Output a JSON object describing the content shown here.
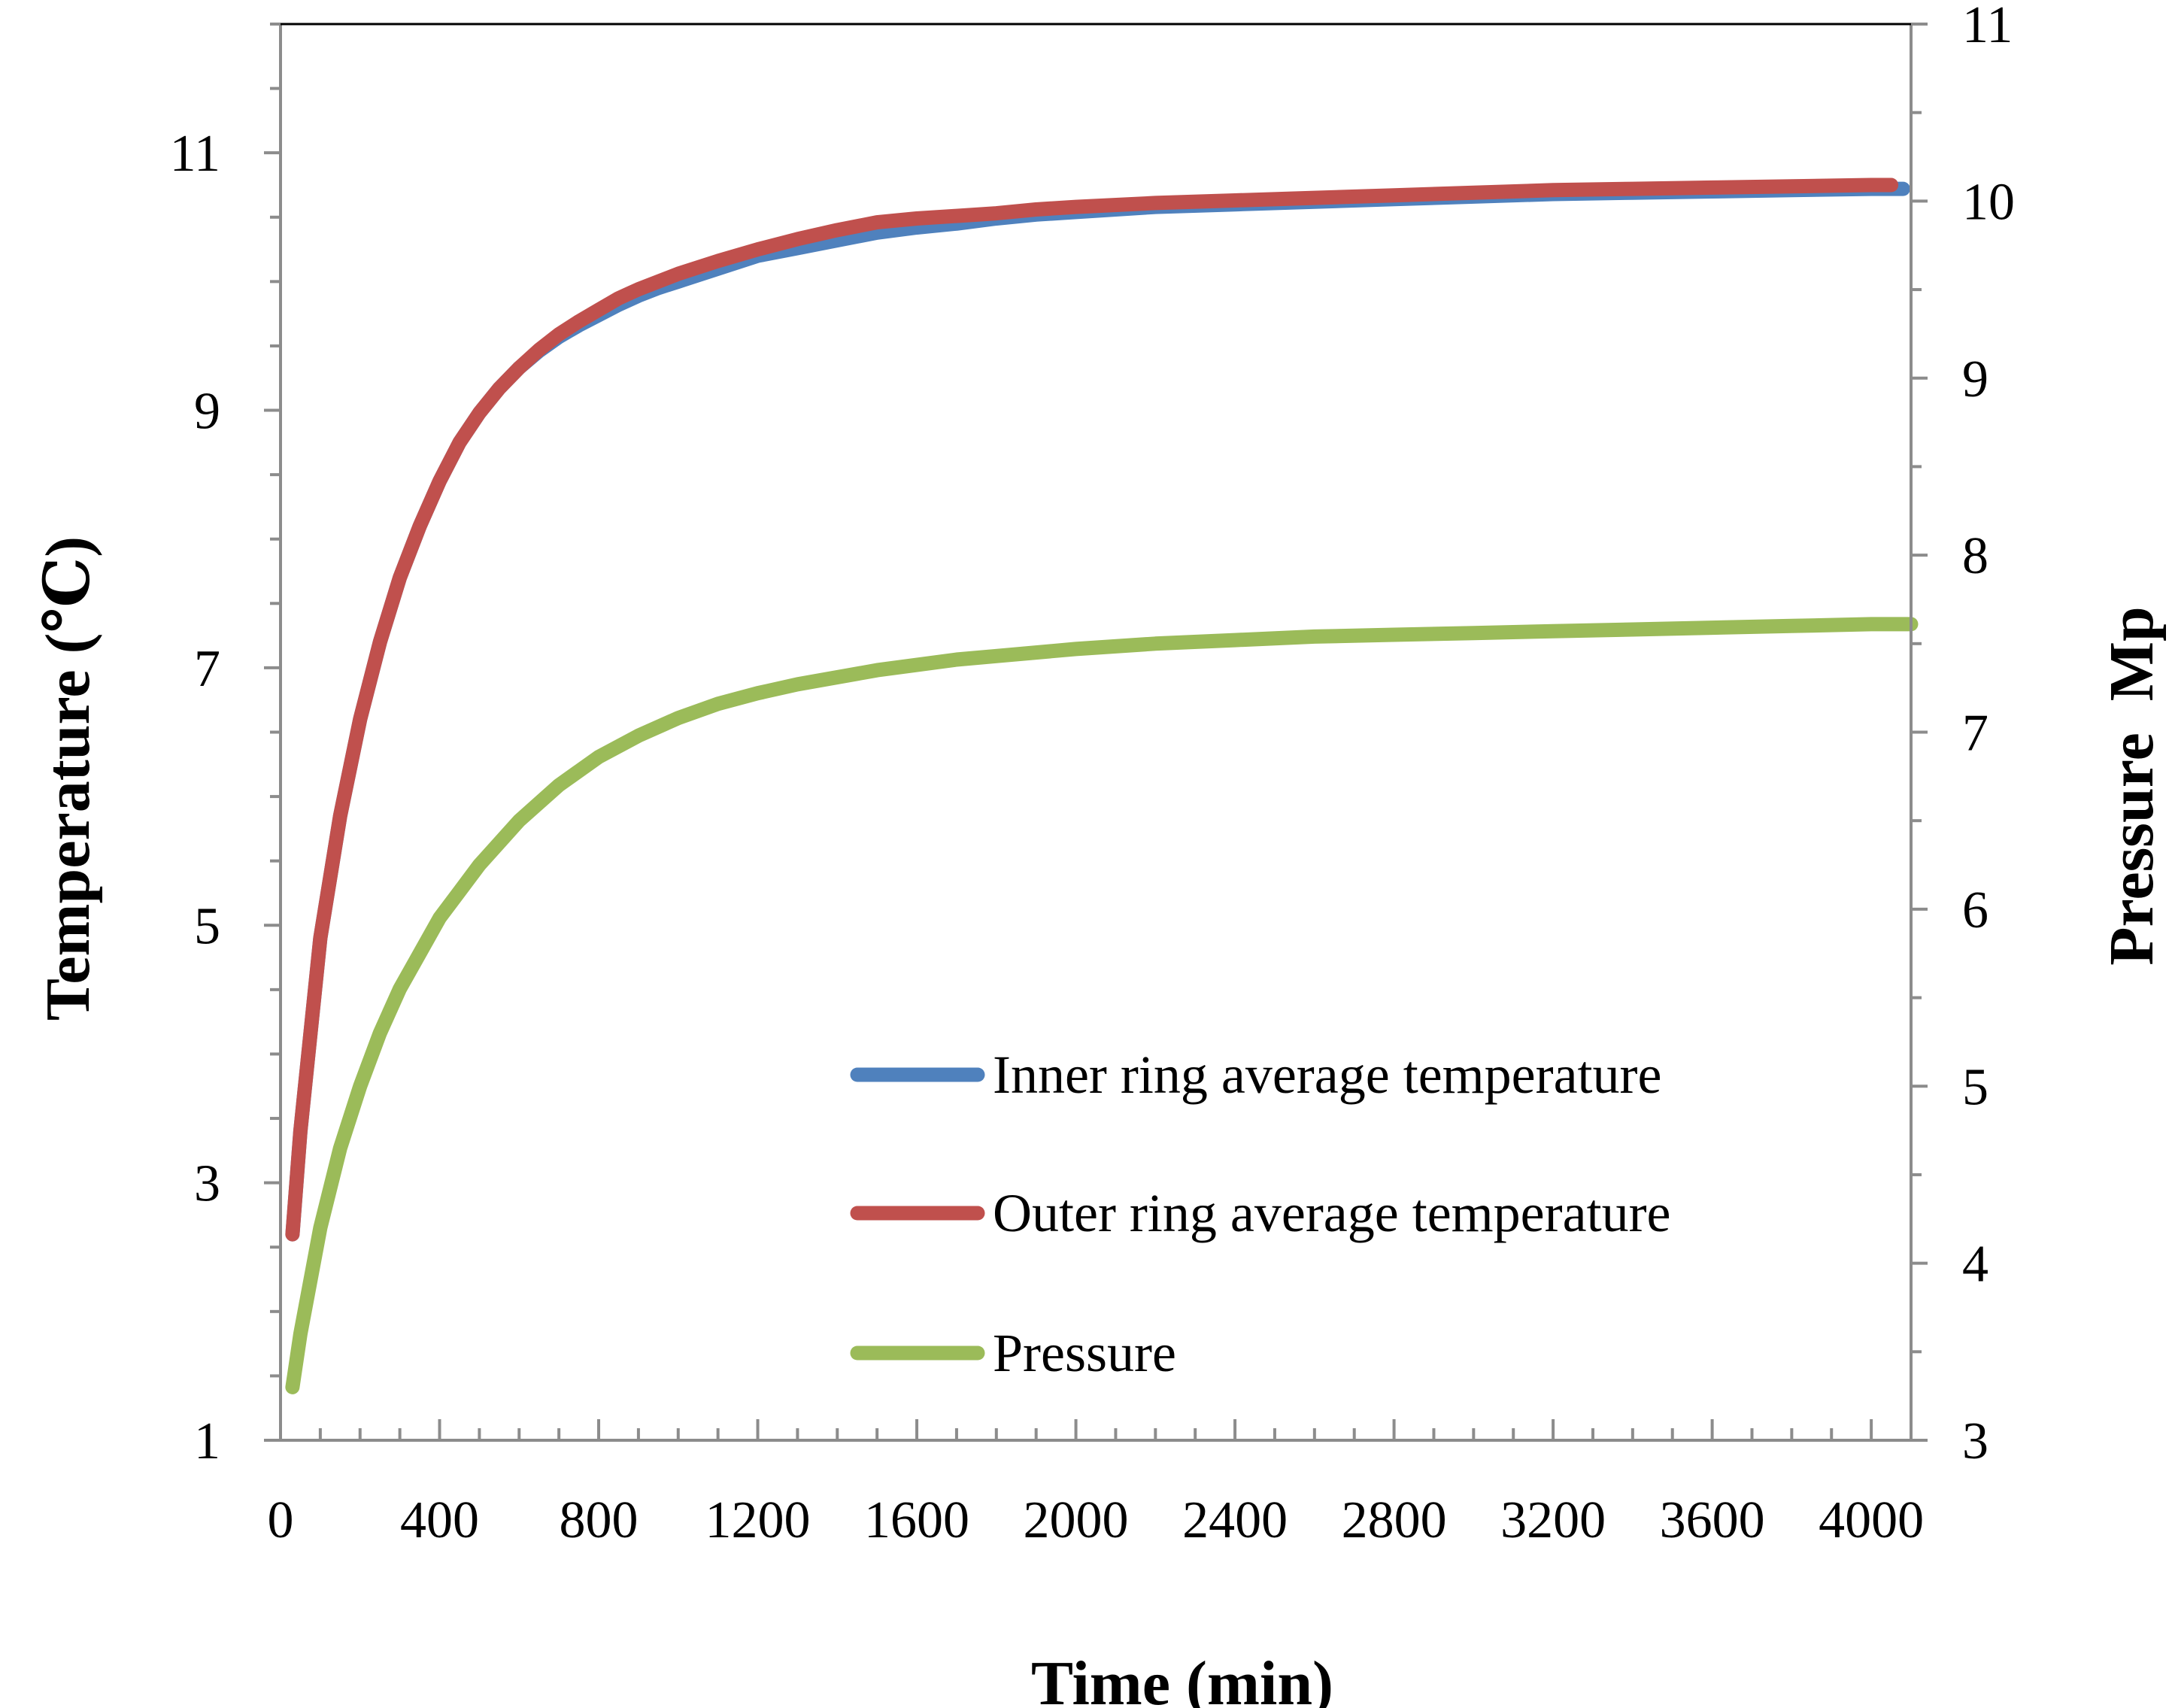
{
  "chart_data": {
    "type": "line",
    "title": "",
    "xlabel": "Time (min)",
    "ylabel": "Temperature (℃)",
    "y2label": "Pressure  Mp",
    "xlim": [
      0,
      4100
    ],
    "ylim": [
      1,
      12
    ],
    "y2lim": [
      3,
      11
    ],
    "xticks": [
      0,
      400,
      800,
      1200,
      1600,
      2000,
      2400,
      2800,
      3200,
      3600,
      4000
    ],
    "yticks": [
      1,
      3,
      5,
      7,
      9,
      11
    ],
    "y2ticks": [
      3,
      4,
      5,
      6,
      7,
      8,
      9,
      10,
      11
    ],
    "grid": false,
    "legend_position": "lower-right",
    "series": [
      {
        "name": "Inner ring average temperature",
        "axis": "left",
        "color": "#4F81BD",
        "x": [
          30,
          50,
          100,
          150,
          200,
          250,
          300,
          350,
          400,
          450,
          500,
          550,
          600,
          650,
          700,
          750,
          800,
          850,
          900,
          950,
          1000,
          1100,
          1200,
          1300,
          1400,
          1500,
          1600,
          1700,
          1800,
          1900,
          2000,
          2200,
          2400,
          2600,
          2800,
          3000,
          3200,
          3400,
          3600,
          3800,
          4000,
          4080
        ],
        "y": [
          2.6,
          3.4,
          4.9,
          5.85,
          6.6,
          7.2,
          7.7,
          8.1,
          8.45,
          8.75,
          8.98,
          9.17,
          9.33,
          9.46,
          9.57,
          9.66,
          9.74,
          9.82,
          9.89,
          9.95,
          10.0,
          10.1,
          10.2,
          10.26,
          10.32,
          10.38,
          10.42,
          10.45,
          10.49,
          10.52,
          10.54,
          10.58,
          10.6,
          10.62,
          10.64,
          10.66,
          10.68,
          10.69,
          10.7,
          10.71,
          10.72,
          10.72
        ]
      },
      {
        "name": "Outer ring average temperature",
        "axis": "left",
        "color": "#C0504D",
        "x": [
          30,
          50,
          100,
          150,
          200,
          250,
          300,
          350,
          400,
          450,
          500,
          550,
          600,
          650,
          700,
          750,
          800,
          850,
          900,
          950,
          1000,
          1100,
          1200,
          1300,
          1400,
          1500,
          1600,
          1700,
          1800,
          1900,
          2000,
          2200,
          2400,
          2600,
          2800,
          3000,
          3200,
          3400,
          3600,
          3800,
          4000,
          4050
        ],
        "y": [
          2.6,
          3.4,
          4.9,
          5.85,
          6.6,
          7.2,
          7.7,
          8.1,
          8.45,
          8.75,
          8.98,
          9.17,
          9.33,
          9.47,
          9.59,
          9.69,
          9.78,
          9.87,
          9.94,
          10.0,
          10.06,
          10.16,
          10.25,
          10.33,
          10.4,
          10.46,
          10.49,
          10.51,
          10.53,
          10.56,
          10.58,
          10.61,
          10.63,
          10.65,
          10.67,
          10.69,
          10.71,
          10.72,
          10.73,
          10.74,
          10.75,
          10.75
        ]
      },
      {
        "name": "Pressure",
        "axis": "right",
        "color": "#9BBB59",
        "x": [
          30,
          50,
          100,
          150,
          200,
          250,
          300,
          350,
          400,
          450,
          500,
          600,
          700,
          800,
          900,
          1000,
          1100,
          1200,
          1300,
          1400,
          1500,
          1600,
          1700,
          1800,
          2000,
          2200,
          2400,
          2600,
          2800,
          3000,
          3200,
          3400,
          3600,
          3800,
          4000,
          4100
        ],
        "y": [
          3.3,
          3.6,
          4.2,
          4.65,
          5.0,
          5.3,
          5.55,
          5.75,
          5.95,
          6.1,
          6.25,
          6.5,
          6.7,
          6.86,
          6.98,
          7.08,
          7.16,
          7.22,
          7.27,
          7.31,
          7.35,
          7.38,
          7.41,
          7.43,
          7.47,
          7.5,
          7.52,
          7.54,
          7.55,
          7.56,
          7.57,
          7.58,
          7.59,
          7.6,
          7.61,
          7.61
        ]
      }
    ]
  }
}
